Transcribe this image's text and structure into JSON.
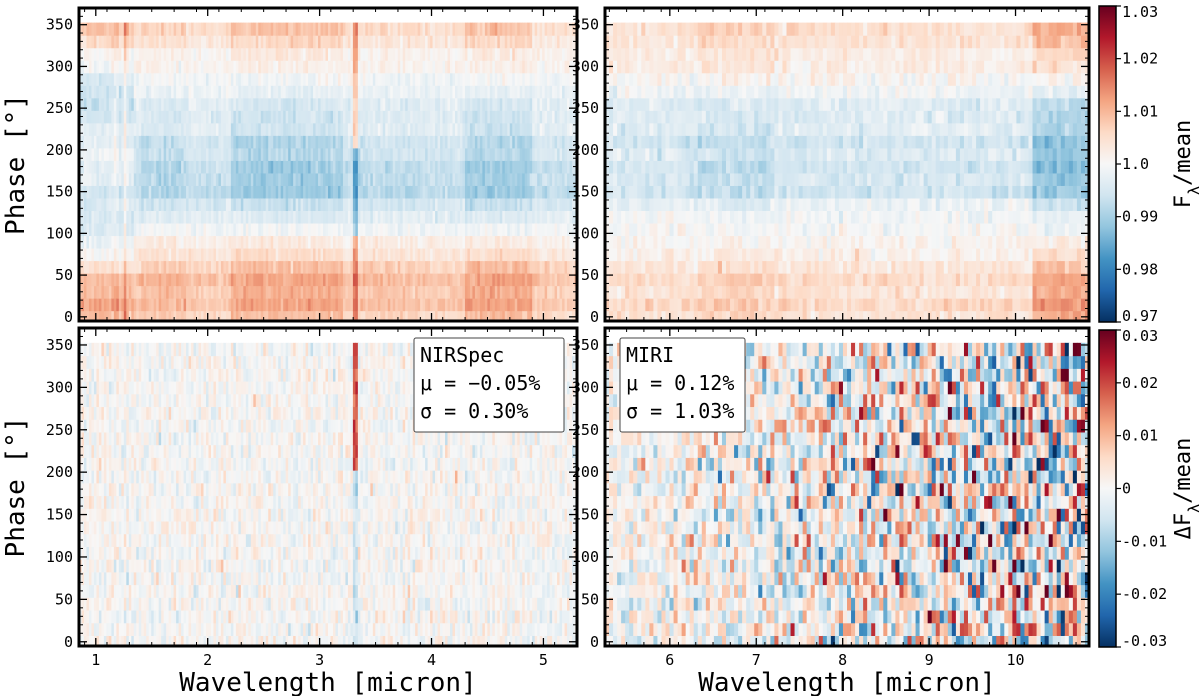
{
  "chart_data": {
    "type": "heatmap",
    "shared": {
      "ylabel": "Phase [°]",
      "xlabel": "Wavelength [micron]",
      "ylim": [
        -5,
        370
      ],
      "yticks": [
        0,
        50,
        100,
        150,
        200,
        250,
        300,
        350
      ],
      "phase_rows": 24,
      "phase_step_deg": 15
    },
    "colorbars": [
      {
        "label": "Fλ/mean",
        "label_base": "F",
        "label_sub": "λ",
        "label_tail": "/mean",
        "range": [
          0.97,
          1.03
        ],
        "ticks": [
          0.97,
          0.98,
          0.99,
          1.0,
          1.01,
          1.02,
          1.03
        ],
        "tick_labels": [
          "0.97",
          "0.98",
          "0.99",
          "1.0",
          "1.01",
          "1.02",
          "1.03"
        ],
        "colormap": "RdBu_r"
      },
      {
        "label": "ΔFλ/mean",
        "label_base": "ΔF",
        "label_sub": "λ",
        "label_tail": "/mean",
        "range": [
          -0.03,
          0.03
        ],
        "ticks": [
          -0.03,
          -0.02,
          -0.01,
          0,
          0.01,
          0.02,
          0.03
        ],
        "tick_labels": [
          "-0.03",
          "-0.02",
          "-0.01",
          "0",
          "0.01",
          "0.02",
          "0.03"
        ],
        "colormap": "RdBu_r"
      }
    ],
    "panels": [
      {
        "id": "top-nirspec",
        "quantity": "flux",
        "xlim": [
          0.85,
          5.3
        ],
        "xticks": [
          1,
          2,
          3,
          4,
          5
        ],
        "show_xticklabels": false,
        "show_ylabel": true,
        "cols": 200,
        "annotation": null
      },
      {
        "id": "top-miri",
        "quantity": "flux",
        "xlim": [
          5.25,
          10.85
        ],
        "xticks": [
          6,
          7,
          8,
          9,
          10
        ],
        "show_xticklabels": false,
        "show_ylabel": false,
        "cols": 120,
        "annotation": null
      },
      {
        "id": "bottom-nirspec",
        "quantity": "residual",
        "xlim": [
          0.85,
          5.3
        ],
        "xticks": [
          1,
          2,
          3,
          4,
          5
        ],
        "show_xticklabels": true,
        "show_ylabel": true,
        "cols": 200,
        "annotation": {
          "instrument": "NIRSpec",
          "mu": "μ = −0.05%",
          "sigma": "σ = 0.30%"
        }
      },
      {
        "id": "bottom-miri",
        "quantity": "residual",
        "xlim": [
          5.25,
          10.85
        ],
        "xticks": [
          6,
          7,
          8,
          9,
          10
        ],
        "show_xticklabels": true,
        "show_ylabel": false,
        "cols": 120,
        "annotation": {
          "instrument": "MIRI",
          "mu": "μ = 0.12%",
          "sigma": "σ = 1.03%"
        }
      }
    ]
  }
}
